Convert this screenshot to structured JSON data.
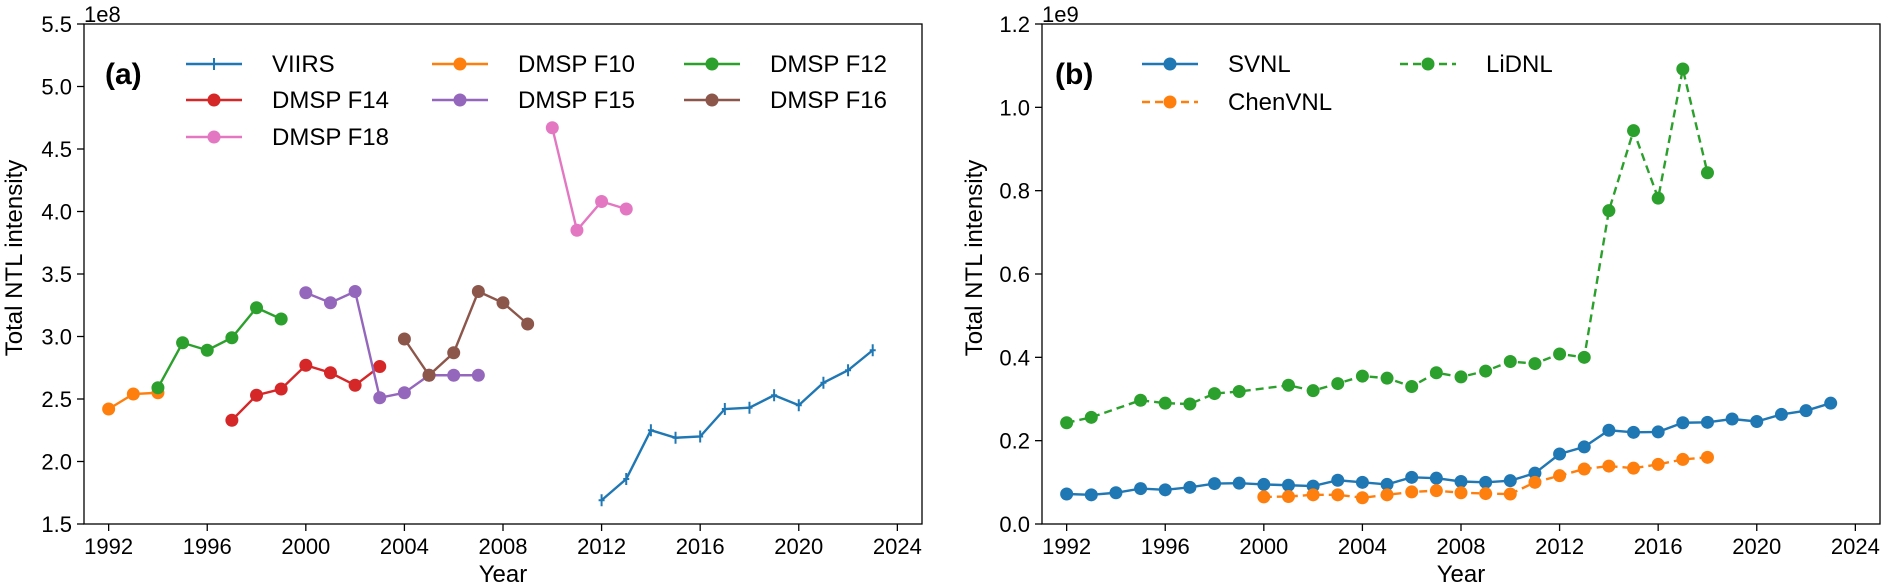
{
  "chart_data": [
    {
      "type": "line",
      "panel_label": "(a)",
      "title": "",
      "xlabel": "Year",
      "ylabel": "Total NTL intensity",
      "y_scale_label": "1e8",
      "xlim": [
        1991,
        2025
      ],
      "ylim": [
        1.5,
        5.5
      ],
      "x_ticks": [
        1992,
        1996,
        2000,
        2004,
        2008,
        2012,
        2016,
        2020,
        2024
      ],
      "y_ticks": [
        1.5,
        2.0,
        2.5,
        3.0,
        3.5,
        4.0,
        4.5,
        5.0,
        5.5
      ],
      "y_tick_labels": [
        "1.5",
        "2.0",
        "2.5",
        "3.0",
        "3.5",
        "4.0",
        "4.5",
        "5.0",
        "5.5"
      ],
      "grid": false,
      "legend_position": "top",
      "series": [
        {
          "name": "VIIRS",
          "color": "#1f77b4",
          "marker": "plus",
          "dash": "solid",
          "x": [
            2012,
            2013,
            2014,
            2015,
            2016,
            2017,
            2018,
            2019,
            2020,
            2021,
            2022,
            2023
          ],
          "y": [
            1.69,
            1.86,
            2.25,
            2.19,
            2.2,
            2.42,
            2.43,
            2.53,
            2.45,
            2.63,
            2.73,
            2.89
          ]
        },
        {
          "name": "DMSP F10",
          "color": "#ff7f0e",
          "marker": "circle",
          "dash": "solid",
          "x": [
            1992,
            1993,
            1994
          ],
          "y": [
            2.42,
            2.54,
            2.55
          ]
        },
        {
          "name": "DMSP F12",
          "color": "#2ca02c",
          "marker": "circle",
          "dash": "solid",
          "x": [
            1994,
            1995,
            1996,
            1997,
            1998,
            1999
          ],
          "y": [
            2.59,
            2.95,
            2.89,
            2.99,
            3.23,
            3.14
          ]
        },
        {
          "name": "DMSP F14",
          "color": "#d62728",
          "marker": "circle",
          "dash": "solid",
          "x": [
            1997,
            1998,
            1999,
            2000,
            2001,
            2002,
            2003
          ],
          "y": [
            2.33,
            2.53,
            2.58,
            2.77,
            2.71,
            2.61,
            2.76
          ]
        },
        {
          "name": "DMSP F15",
          "color": "#9467bd",
          "marker": "circle",
          "dash": "solid",
          "x": [
            2000,
            2001,
            2002,
            2003,
            2004,
            2005,
            2006,
            2007
          ],
          "y": [
            3.35,
            3.27,
            3.36,
            2.51,
            2.55,
            2.69,
            2.69,
            2.69
          ]
        },
        {
          "name": "DMSP F16",
          "color": "#8c564b",
          "marker": "circle",
          "dash": "solid",
          "x": [
            2004,
            2005,
            2006,
            2007,
            2008,
            2009
          ],
          "y": [
            2.98,
            2.69,
            2.87,
            3.36,
            3.27,
            3.1
          ]
        },
        {
          "name": "DMSP F18",
          "color": "#e377c2",
          "marker": "circle",
          "dash": "solid",
          "x": [
            2010,
            2011,
            2012,
            2013
          ],
          "y": [
            4.67,
            3.85,
            4.08,
            4.02
          ]
        }
      ]
    },
    {
      "type": "line",
      "panel_label": "(b)",
      "title": "",
      "xlabel": "Year",
      "ylabel": "Total NTL intensity",
      "y_scale_label": "1e9",
      "xlim": [
        1991,
        2025
      ],
      "ylim": [
        0.0,
        1.2
      ],
      "x_ticks": [
        1992,
        1996,
        2000,
        2004,
        2008,
        2012,
        2016,
        2020,
        2024
      ],
      "y_ticks": [
        0.0,
        0.2,
        0.4,
        0.6,
        0.8,
        1.0,
        1.2
      ],
      "y_tick_labels": [
        "0.0",
        "0.2",
        "0.4",
        "0.6",
        "0.8",
        "1.0",
        "1.2"
      ],
      "grid": false,
      "legend_position": "top",
      "series": [
        {
          "name": "SVNL",
          "color": "#1f77b4",
          "marker": "circle",
          "dash": "solid",
          "x": [
            1992,
            1993,
            1994,
            1995,
            1996,
            1997,
            1998,
            1999,
            2000,
            2001,
            2002,
            2003,
            2004,
            2005,
            2006,
            2007,
            2008,
            2009,
            2010,
            2011,
            2012,
            2013,
            2014,
            2015,
            2016,
            2017,
            2018,
            2019,
            2020,
            2021,
            2022,
            2023
          ],
          "y": [
            0.072,
            0.07,
            0.075,
            0.085,
            0.082,
            0.088,
            0.097,
            0.098,
            0.095,
            0.093,
            0.091,
            0.105,
            0.1,
            0.095,
            0.112,
            0.11,
            0.102,
            0.1,
            0.104,
            0.122,
            0.168,
            0.185,
            0.225,
            0.22,
            0.221,
            0.243,
            0.244,
            0.252,
            0.246,
            0.263,
            0.272,
            0.29
          ]
        },
        {
          "name": "ChenVNL",
          "color": "#ff7f0e",
          "marker": "circle",
          "dash": "dashed",
          "x": [
            2000,
            2001,
            2002,
            2003,
            2004,
            2005,
            2006,
            2007,
            2008,
            2009,
            2010,
            2011,
            2012,
            2013,
            2014,
            2015,
            2016,
            2017,
            2018
          ],
          "y": [
            0.065,
            0.066,
            0.07,
            0.07,
            0.063,
            0.07,
            0.077,
            0.08,
            0.075,
            0.073,
            0.072,
            0.1,
            0.116,
            0.132,
            0.139,
            0.134,
            0.143,
            0.155,
            0.16
          ]
        },
        {
          "name": "LiDNL",
          "color": "#2ca02c",
          "marker": "circle",
          "dash": "dashed",
          "x": [
            1992,
            1993,
            1994,
            1995,
            1996,
            1997,
            1998,
            1999,
            2000,
            2001,
            2002,
            2003,
            2004,
            2005,
            2006,
            2007,
            2008,
            2009,
            2010,
            2011,
            2012,
            2013,
            2014,
            2015,
            2016,
            2017,
            2018
          ],
          "y": [
            0.243,
            0.256,
            null,
            0.297,
            0.29,
            0.288,
            0.313,
            0.318,
            null,
            0.333,
            0.32,
            0.337,
            0.355,
            0.35,
            0.33,
            0.363,
            0.353,
            0.367,
            0.39,
            0.385,
            0.408,
            0.4,
            0.752,
            0.944,
            0.782,
            1.092,
            0.843
          ]
        }
      ]
    }
  ]
}
